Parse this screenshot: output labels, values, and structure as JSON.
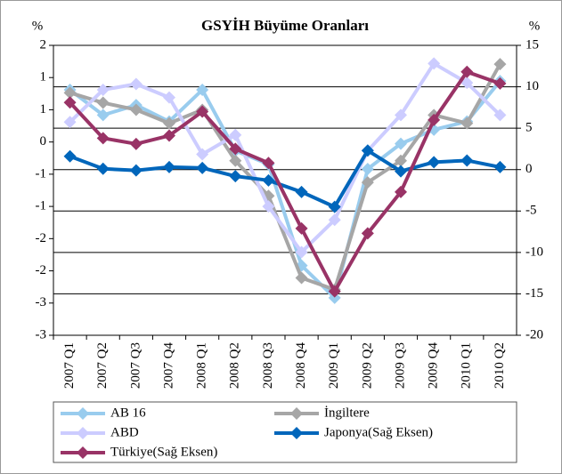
{
  "chart_data": {
    "type": "line",
    "title": "GSYİH Büyüme Oranları",
    "y_label": "%",
    "y2_label": "%",
    "categories": [
      "2007 Q1",
      "2007 Q2",
      "2007 Q3",
      "2007 Q4",
      "2008 Q1",
      "2008 Q2",
      "2008 Q3",
      "2008 Q4",
      "2009 Q1",
      "2009 Q2",
      "2009 Q3",
      "2009 Q4",
      "2010 Q1",
      "2010 Q2"
    ],
    "ylim": [
      -3.3,
      1.65
    ],
    "yticks": [
      {
        "value": 1.65,
        "label": "2"
      },
      {
        "value": 1.1,
        "label": "1"
      },
      {
        "value": 0.55,
        "label": "1"
      },
      0,
      {
        "value": -0.55,
        "label": "-1"
      },
      {
        "value": -1.1,
        "label": "-1"
      },
      {
        "value": -1.65,
        "label": "-2"
      },
      {
        "value": -2.2,
        "label": "-2"
      },
      {
        "value": -2.75,
        "label": "-3"
      },
      {
        "value": -3.3,
        "label": "-3"
      }
    ],
    "y2lim": [
      -20,
      15
    ],
    "y2ticks": [
      -20,
      -15,
      -10,
      -5,
      0,
      5,
      10,
      15
    ],
    "grid": true,
    "legend": "bottom",
    "series": [
      {
        "name": "AB 16",
        "color": "#99ccee",
        "values": [
          0.89,
          0.46,
          0.63,
          0.35,
          0.89,
          -0.15,
          -0.38,
          -2.11,
          -2.66,
          -0.46,
          -0.03,
          0.21,
          0.35,
          1.04
        ]
      },
      {
        "name": "İngiltere",
        "color": "#a6a6a6",
        "values": [
          0.84,
          0.67,
          0.55,
          0.32,
          0.55,
          -0.32,
          -0.92,
          -2.32,
          -2.52,
          -0.69,
          -0.32,
          0.46,
          0.32,
          1.33
        ]
      },
      {
        "name": "ABD",
        "color": "#ccccff",
        "values": [
          0.34,
          0.89,
          0.99,
          0.76,
          -0.21,
          0.12,
          -1.1,
          -1.88,
          -1.33,
          -0.15,
          0.46,
          1.34,
          1.01,
          0.46
        ]
      },
      {
        "name": "Japonya(Sağ Eksen)",
        "color": "#0066bb",
        "axis": "y2",
        "values": [
          1.6,
          0.1,
          -0.1,
          0.3,
          0.2,
          -0.8,
          -1.3,
          -2.7,
          -4.5,
          2.3,
          -0.2,
          0.9,
          1.1,
          0.3
        ]
      },
      {
        "name": "Türkiye(Sağ Eksen)",
        "color": "#993366",
        "axis": "y2",
        "values": [
          8.1,
          3.8,
          3.1,
          4.1,
          7.0,
          2.5,
          0.8,
          -7.1,
          -14.7,
          -7.7,
          -2.7,
          6.0,
          11.8,
          10.4
        ]
      }
    ]
  }
}
